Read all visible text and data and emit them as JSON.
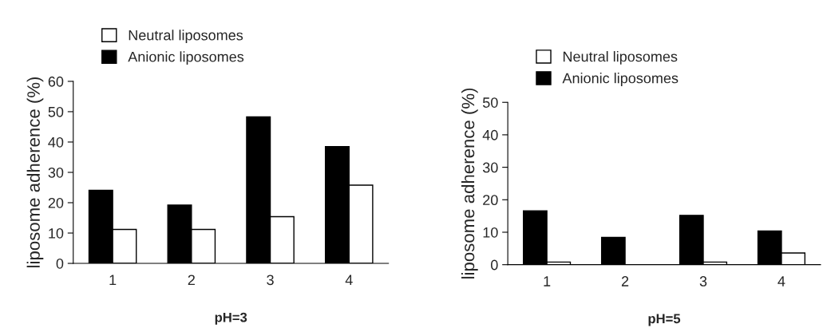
{
  "chart_data": [
    {
      "type": "bar",
      "xlabel": "pH=3",
      "ylabel": "liposome adherence (%)",
      "categories": [
        "1",
        "2",
        "3",
        "4"
      ],
      "ylim": [
        0,
        60
      ],
      "yticks": [
        0,
        10,
        20,
        30,
        40,
        50,
        60
      ],
      "legend": "top",
      "grid": false,
      "series": [
        {
          "name": "Anionic liposomes",
          "color": "#000000",
          "values": [
            24.1,
            19.2,
            48.3,
            38.5
          ]
        },
        {
          "name": "Neutral liposomes",
          "color": "#ffffff",
          "values": [
            11.2,
            11.2,
            15.4,
            25.8
          ]
        }
      ]
    },
    {
      "type": "bar",
      "xlabel": "pH=5",
      "ylabel": "liposome adherence (%)",
      "categories": [
        "1",
        "2",
        "3",
        "4"
      ],
      "ylim": [
        0,
        50
      ],
      "yticks": [
        0,
        10,
        20,
        30,
        40,
        50
      ],
      "legend": "top",
      "grid": false,
      "series": [
        {
          "name": "Anionic liposomes",
          "color": "#000000",
          "values": [
            16.6,
            8.4,
            15.2,
            10.4
          ]
        },
        {
          "name": "Neutral liposomes",
          "color": "#ffffff",
          "values": [
            0.8,
            0,
            0.8,
            3.6
          ]
        }
      ]
    }
  ]
}
